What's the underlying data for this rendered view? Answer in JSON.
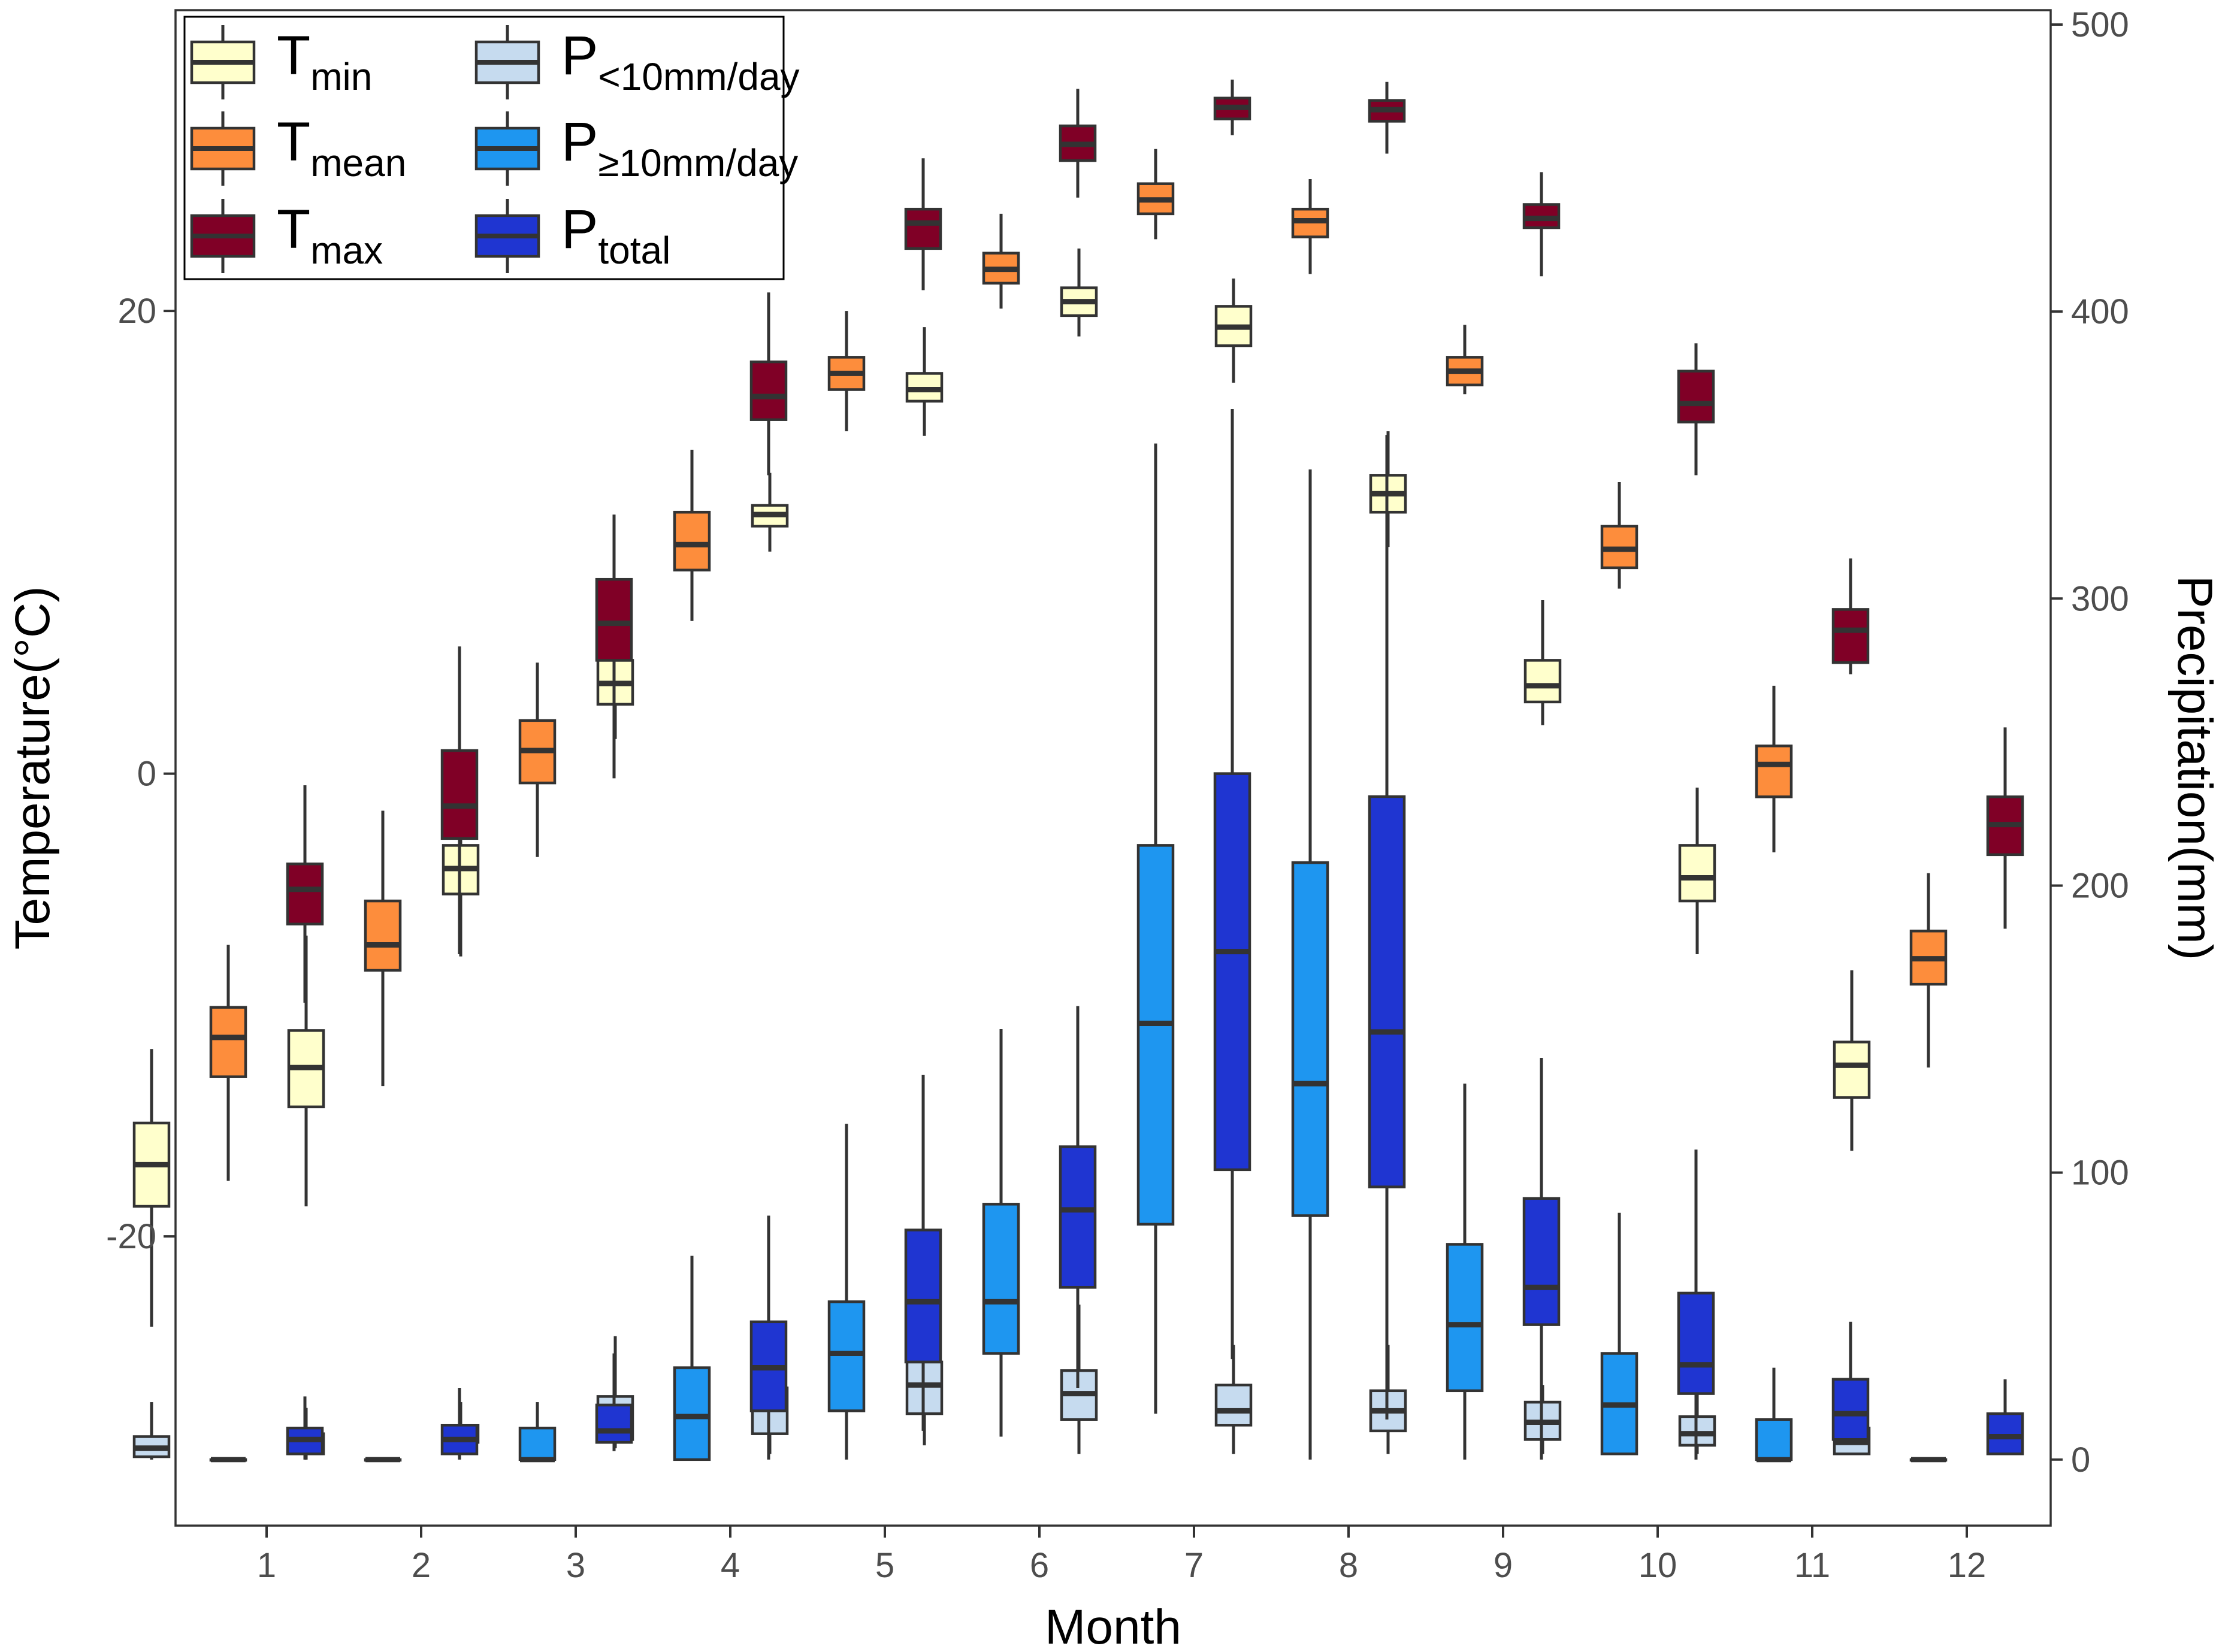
{
  "chart_data": {
    "type": "box",
    "xlabel": "Month",
    "ylabel_left": "Temperature(°C)",
    "ylabel_right": "Precipitation(mm)",
    "categories": [
      "1",
      "2",
      "3",
      "4",
      "5",
      "6",
      "7",
      "8",
      "9",
      "10",
      "11",
      "12"
    ],
    "left_axis": {
      "ylim": [
        -32.5,
        33
      ],
      "ticks": [
        -20,
        0,
        20
      ],
      "tick_labels": [
        "-20",
        "0",
        "20"
      ]
    },
    "right_axis": {
      "ylim": [
        -23,
        505
      ],
      "ticks": [
        0,
        100,
        200,
        300,
        400,
        500
      ],
      "tick_labels": [
        "0",
        "100",
        "200",
        "300",
        "400",
        "500"
      ]
    },
    "legend": [
      {
        "key": "tmin",
        "main": "T",
        "sub": "min"
      },
      {
        "key": "tmean",
        "main": "T",
        "sub": "mean"
      },
      {
        "key": "tmax",
        "main": "T",
        "sub": "max"
      },
      {
        "key": "plt10",
        "main": "P",
        "sub": "<10mm/day"
      },
      {
        "key": "pge10",
        "main": "P",
        "sub": "≥10mm/day"
      },
      {
        "key": "ptotal",
        "main": "P",
        "sub": "total"
      }
    ],
    "series": [
      {
        "key": "tmin",
        "name": "Tmin",
        "axis": "left",
        "color": "#FFFFCC",
        "offset": -3,
        "stats": [
          [
            -23.9,
            -18.7,
            -16.9,
            -15.1,
            -11.9
          ],
          [
            -18.7,
            -14.4,
            -12.7,
            -11.1,
            -7.0
          ],
          [
            -7.9,
            -5.2,
            -4.1,
            -3.1,
            -0.5
          ],
          [
            1.5,
            3.0,
            3.9,
            4.9,
            7.6
          ],
          [
            9.6,
            10.7,
            11.2,
            11.6,
            13.0
          ],
          [
            14.6,
            16.1,
            16.6,
            17.3,
            19.3
          ],
          [
            18.9,
            19.8,
            20.4,
            21.0,
            22.7
          ],
          [
            16.9,
            18.5,
            19.3,
            20.2,
            21.4
          ],
          [
            9.8,
            11.3,
            12.1,
            12.9,
            14.8
          ],
          [
            2.1,
            3.1,
            3.8,
            4.9,
            7.5
          ],
          [
            -7.8,
            -5.5,
            -4.5,
            -3.1,
            -0.6
          ],
          [
            -16.3,
            -14.0,
            -12.6,
            -11.6,
            -8.5
          ]
        ]
      },
      {
        "key": "tmean",
        "name": "Tmean",
        "axis": "left",
        "color": "#FD8D3C",
        "offset": -1,
        "stats": [
          [
            -17.6,
            -13.1,
            -11.4,
            -10.1,
            -7.4
          ],
          [
            -13.5,
            -8.5,
            -7.4,
            -5.5,
            -1.6
          ],
          [
            -3.6,
            -0.4,
            1.0,
            2.3,
            4.8
          ],
          [
            6.6,
            8.8,
            9.9,
            11.3,
            14.0
          ],
          [
            14.8,
            16.6,
            17.3,
            18.0,
            20.0
          ],
          [
            20.1,
            21.2,
            21.8,
            22.5,
            24.2
          ],
          [
            23.1,
            24.2,
            24.8,
            25.5,
            27.0
          ],
          [
            21.6,
            23.2,
            23.9,
            24.4,
            25.7
          ],
          [
            16.4,
            16.8,
            17.4,
            18.0,
            19.4
          ],
          [
            8.0,
            8.9,
            9.7,
            10.7,
            12.6
          ],
          [
            -3.4,
            -1.0,
            0.4,
            1.2,
            3.8
          ],
          [
            -12.7,
            -9.1,
            -8.0,
            -6.8,
            -4.3
          ]
        ]
      },
      {
        "key": "tmax",
        "name": "Tmax",
        "axis": "left",
        "color": "#800026",
        "offset": 1,
        "stats": [
          [
            -9.9,
            -6.5,
            -5.0,
            -3.9,
            -0.5
          ],
          [
            -7.8,
            -2.8,
            -1.4,
            1.0,
            5.5
          ],
          [
            -0.2,
            4.9,
            6.5,
            8.4,
            11.2
          ],
          [
            12.9,
            15.3,
            16.3,
            17.8,
            20.8
          ],
          [
            20.9,
            22.7,
            23.8,
            24.4,
            26.6
          ],
          [
            24.9,
            26.5,
            27.2,
            28.0,
            29.6
          ],
          [
            27.6,
            28.3,
            28.8,
            29.2,
            30.0
          ],
          [
            26.8,
            28.2,
            28.7,
            29.1,
            29.9
          ],
          [
            21.5,
            23.6,
            24.0,
            24.6,
            26.0
          ],
          [
            12.9,
            15.2,
            16.0,
            17.4,
            18.6
          ],
          [
            4.3,
            4.8,
            6.2,
            7.1,
            9.3
          ],
          [
            -6.7,
            -3.5,
            -2.2,
            -1.0,
            2.0
          ]
        ]
      },
      {
        "key": "plt10",
        "name": "P<10mm/day",
        "axis": "right",
        "color": "#C6DBEF",
        "offset": -3,
        "stats": [
          [
            0,
            1,
            4,
            8,
            20
          ],
          [
            0,
            2,
            6,
            9,
            18
          ],
          [
            2,
            6,
            8,
            12,
            20
          ],
          [
            4,
            7,
            13,
            22,
            43
          ],
          [
            2,
            9,
            19,
            25,
            35
          ],
          [
            5,
            16,
            26,
            34,
            50
          ],
          [
            2,
            14,
            23,
            31,
            54
          ],
          [
            2,
            12,
            17,
            26,
            40
          ],
          [
            2,
            10,
            17,
            24,
            40
          ],
          [
            2,
            7,
            13,
            20,
            26
          ],
          [
            2,
            5,
            9,
            15,
            30
          ],
          [
            2,
            2,
            6,
            11,
            23
          ]
        ]
      },
      {
        "key": "pge10",
        "name": "P≥10mm/day",
        "axis": "right",
        "color": "#1E96F0",
        "offset": -1,
        "stats": [
          [
            0,
            0,
            0,
            0,
            0
          ],
          [
            0,
            0,
            0,
            0,
            0
          ],
          [
            0,
            0,
            0,
            11,
            20
          ],
          [
            0,
            0,
            15,
            32,
            71
          ],
          [
            0,
            17,
            37,
            55,
            117
          ],
          [
            8,
            37,
            55,
            89,
            150
          ],
          [
            16,
            82,
            152,
            214,
            354
          ],
          [
            0,
            85,
            131,
            208,
            345
          ],
          [
            0,
            24,
            47,
            75,
            131
          ],
          [
            2,
            2,
            19,
            37,
            86
          ],
          [
            0,
            0,
            0,
            14,
            32
          ],
          [
            0,
            0,
            0,
            0,
            0
          ]
        ]
      },
      {
        "key": "ptotal",
        "name": "Ptotal",
        "axis": "right",
        "color": "#1F35D1",
        "offset": 1,
        "stats": [
          [
            0,
            2,
            7,
            11,
            22
          ],
          [
            0,
            2,
            7,
            12,
            25
          ],
          [
            3,
            6,
            10,
            19,
            37
          ],
          [
            0,
            17,
            32,
            48,
            85
          ],
          [
            10,
            34,
            55,
            80,
            134
          ],
          [
            25,
            60,
            87,
            109,
            158
          ],
          [
            35,
            101,
            177,
            239,
            366
          ],
          [
            14,
            95,
            149,
            231,
            357
          ],
          [
            0,
            47,
            60,
            91,
            140
          ],
          [
            0,
            23,
            33,
            58,
            108
          ],
          [
            7,
            7,
            16,
            28,
            48
          ],
          [
            2,
            2,
            8,
            16,
            28
          ]
        ]
      }
    ]
  }
}
